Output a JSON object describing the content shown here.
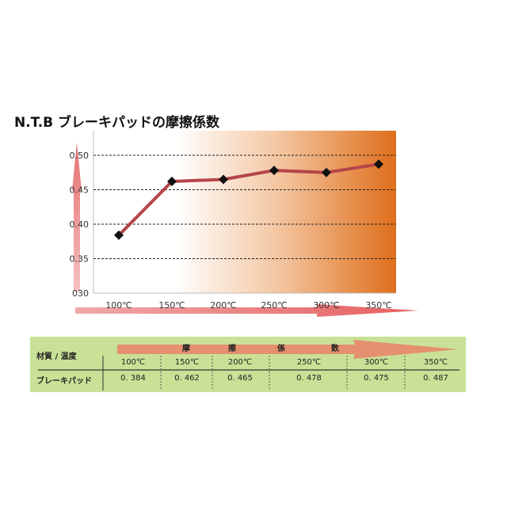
{
  "chart_data": {
    "type": "line",
    "title": "N.T.B ブレーキパッドの摩擦係数",
    "categories": [
      "100℃",
      "150℃",
      "200℃",
      "250℃",
      "300℃",
      "350℃"
    ],
    "series": [
      {
        "values": [
          0.384,
          0.462,
          0.465,
          0.478,
          0.475,
          0.487
        ]
      }
    ],
    "yticks": [
      "030",
      "0.35",
      "0.40",
      "0.45",
      "0.50"
    ],
    "ylim": [
      0.3,
      0.52
    ],
    "grid": "horizontal-dashed",
    "colors": {
      "line": "#b5454a",
      "marker": "#111111",
      "gradient_end": "#df6f1c",
      "arrow": "#e88080"
    }
  },
  "table": {
    "header_label": "材質 / 温度",
    "arrow_label": [
      "摩",
      "擦",
      "係",
      "数"
    ],
    "columns": [
      "100℃",
      "150℃",
      "200℃",
      "250℃",
      "300℃",
      "350℃"
    ],
    "row_label": "ブレーキパッド",
    "values": [
      "0. 384",
      "0. 462",
      "0. 465",
      "0. 478",
      "0. 475",
      "0. 487"
    ],
    "background": "#c8e196"
  }
}
